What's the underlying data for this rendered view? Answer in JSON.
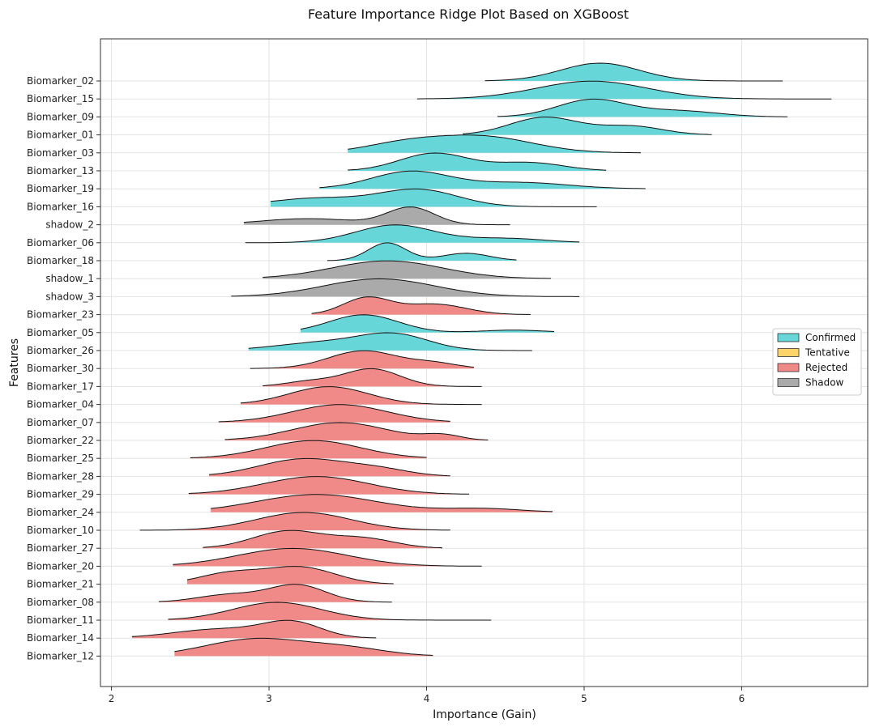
{
  "chart_data": {
    "type": "ridge",
    "title": "Feature Importance Ridge Plot Based on XGBoost",
    "xlabel": "Importance (Gain)",
    "ylabel": "Features",
    "xlim": [
      1.93,
      6.8
    ],
    "x_ticks": [
      2,
      3,
      4,
      5,
      6
    ],
    "grid": true,
    "legend_position": "right",
    "legend": [
      {
        "name": "Confirmed",
        "color": "#66d6d8"
      },
      {
        "name": "Tentative",
        "color": "#fcd46a"
      },
      {
        "name": "Rejected",
        "color": "#f08a88"
      },
      {
        "name": "Shadow",
        "color": "#aaaaaa"
      }
    ],
    "features": [
      {
        "name": "Biomarker_02",
        "status": "Confirmed",
        "min": 4.37,
        "max": 6.26,
        "peaks": [
          [
            5.1,
            0.25,
            0.68
          ]
        ]
      },
      {
        "name": "Biomarker_15",
        "status": "Confirmed",
        "min": 3.94,
        "max": 6.57,
        "peaks": [
          [
            5.05,
            0.35,
            0.72
          ]
        ]
      },
      {
        "name": "Biomarker_09",
        "status": "Confirmed",
        "min": 4.45,
        "max": 6.29,
        "peaks": [
          [
            5.05,
            0.22,
            0.72
          ],
          [
            5.6,
            0.25,
            0.25
          ]
        ]
      },
      {
        "name": "Biomarker_01",
        "status": "Confirmed",
        "min": 4.23,
        "max": 5.81,
        "peaks": [
          [
            4.75,
            0.22,
            0.72
          ],
          [
            5.3,
            0.2,
            0.35
          ]
        ]
      },
      {
        "name": "Biomarker_03",
        "status": "Confirmed",
        "min": 3.5,
        "max": 5.36,
        "peaks": [
          [
            4.35,
            0.32,
            0.68
          ],
          [
            3.85,
            0.25,
            0.35
          ]
        ]
      },
      {
        "name": "Biomarker_13",
        "status": "Confirmed",
        "min": 3.5,
        "max": 5.14,
        "peaks": [
          [
            4.05,
            0.22,
            0.65
          ],
          [
            4.65,
            0.22,
            0.3
          ]
        ]
      },
      {
        "name": "Biomarker_19",
        "status": "Confirmed",
        "min": 3.32,
        "max": 5.39,
        "peaks": [
          [
            3.9,
            0.25,
            0.7
          ],
          [
            4.6,
            0.3,
            0.25
          ]
        ]
      },
      {
        "name": "Biomarker_16",
        "status": "Confirmed",
        "min": 3.01,
        "max": 5.08,
        "peaks": [
          [
            3.95,
            0.25,
            0.6
          ],
          [
            3.3,
            0.3,
            0.3
          ]
        ]
      },
      {
        "name": "shadow_2",
        "status": "Shadow",
        "min": 2.84,
        "max": 4.53,
        "peaks": [
          [
            3.9,
            0.15,
            0.62
          ],
          [
            3.25,
            0.3,
            0.22
          ]
        ]
      },
      {
        "name": "Biomarker_06",
        "status": "Confirmed",
        "min": 2.85,
        "max": 4.97,
        "peaks": [
          [
            3.8,
            0.25,
            0.62
          ],
          [
            4.5,
            0.25,
            0.15
          ]
        ]
      },
      {
        "name": "Biomarker_18",
        "status": "Confirmed",
        "min": 3.37,
        "max": 4.57,
        "peaks": [
          [
            3.75,
            0.12,
            0.72
          ],
          [
            4.25,
            0.15,
            0.3
          ]
        ]
      },
      {
        "name": "shadow_1",
        "status": "Shadow",
        "min": 2.96,
        "max": 4.79,
        "peaks": [
          [
            3.75,
            0.35,
            0.72
          ]
        ]
      },
      {
        "name": "shadow_3",
        "status": "Shadow",
        "min": 2.76,
        "max": 4.97,
        "peaks": [
          [
            3.7,
            0.35,
            0.72
          ]
        ]
      },
      {
        "name": "Biomarker_23",
        "status": "Rejected",
        "min": 3.27,
        "max": 4.66,
        "peaks": [
          [
            3.62,
            0.15,
            0.72
          ],
          [
            4.05,
            0.2,
            0.45
          ]
        ]
      },
      {
        "name": "Biomarker_05",
        "status": "Confirmed",
        "min": 3.2,
        "max": 4.81,
        "peaks": [
          [
            3.6,
            0.22,
            0.72
          ],
          [
            4.55,
            0.2,
            0.1
          ]
        ]
      },
      {
        "name": "Biomarker_26",
        "status": "Confirmed",
        "min": 2.87,
        "max": 4.67,
        "peaks": [
          [
            3.8,
            0.22,
            0.65
          ],
          [
            3.35,
            0.3,
            0.35
          ]
        ]
      },
      {
        "name": "Biomarker_30",
        "status": "Rejected",
        "min": 2.88,
        "max": 4.3,
        "peaks": [
          [
            3.6,
            0.22,
            0.72
          ],
          [
            4.05,
            0.15,
            0.2
          ]
        ]
      },
      {
        "name": "Biomarker_17",
        "status": "Rejected",
        "min": 2.96,
        "max": 4.35,
        "peaks": [
          [
            3.65,
            0.18,
            0.72
          ],
          [
            3.25,
            0.15,
            0.2
          ]
        ]
      },
      {
        "name": "Biomarker_04",
        "status": "Rejected",
        "min": 2.82,
        "max": 4.35,
        "peaks": [
          [
            3.38,
            0.25,
            0.72
          ]
        ]
      },
      {
        "name": "Biomarker_07",
        "status": "Rejected",
        "min": 2.68,
        "max": 4.15,
        "peaks": [
          [
            3.45,
            0.3,
            0.72
          ]
        ]
      },
      {
        "name": "Biomarker_22",
        "status": "Rejected",
        "min": 2.72,
        "max": 4.39,
        "peaks": [
          [
            3.45,
            0.3,
            0.72
          ],
          [
            4.1,
            0.12,
            0.2
          ]
        ]
      },
      {
        "name": "Biomarker_25",
        "status": "Rejected",
        "min": 2.5,
        "max": 4.0,
        "peaks": [
          [
            3.28,
            0.3,
            0.72
          ]
        ]
      },
      {
        "name": "Biomarker_28",
        "status": "Rejected",
        "min": 2.62,
        "max": 4.15,
        "peaks": [
          [
            3.22,
            0.28,
            0.72
          ],
          [
            3.7,
            0.2,
            0.25
          ]
        ]
      },
      {
        "name": "Biomarker_29",
        "status": "Rejected",
        "min": 2.49,
        "max": 4.27,
        "peaks": [
          [
            3.3,
            0.33,
            0.72
          ]
        ]
      },
      {
        "name": "Biomarker_24",
        "status": "Rejected",
        "min": 2.63,
        "max": 4.8,
        "peaks": [
          [
            3.3,
            0.38,
            0.72
          ],
          [
            4.35,
            0.25,
            0.15
          ]
        ]
      },
      {
        "name": "Biomarker_10",
        "status": "Rejected",
        "min": 2.18,
        "max": 4.15,
        "peaks": [
          [
            3.22,
            0.3,
            0.72
          ]
        ]
      },
      {
        "name": "Biomarker_27",
        "status": "Rejected",
        "min": 2.58,
        "max": 4.1,
        "peaks": [
          [
            3.12,
            0.22,
            0.72
          ],
          [
            3.6,
            0.2,
            0.4
          ]
        ]
      },
      {
        "name": "Biomarker_20",
        "status": "Rejected",
        "min": 2.39,
        "max": 4.35,
        "peaks": [
          [
            3.15,
            0.35,
            0.72
          ]
        ]
      },
      {
        "name": "Biomarker_21",
        "status": "Rejected",
        "min": 2.48,
        "max": 3.79,
        "peaks": [
          [
            3.2,
            0.22,
            0.7
          ],
          [
            2.75,
            0.2,
            0.45
          ]
        ]
      },
      {
        "name": "Biomarker_08",
        "status": "Rejected",
        "min": 2.3,
        "max": 3.78,
        "peaks": [
          [
            3.18,
            0.18,
            0.68
          ],
          [
            2.75,
            0.2,
            0.3
          ]
        ]
      },
      {
        "name": "Biomarker_11",
        "status": "Rejected",
        "min": 2.36,
        "max": 4.41,
        "peaks": [
          [
            3.05,
            0.28,
            0.72
          ]
        ]
      },
      {
        "name": "Biomarker_14",
        "status": "Rejected",
        "min": 2.13,
        "max": 3.68,
        "peaks": [
          [
            3.15,
            0.18,
            0.72
          ],
          [
            2.7,
            0.3,
            0.45
          ]
        ]
      },
      {
        "name": "Biomarker_12",
        "status": "Rejected",
        "min": 2.4,
        "max": 4.04,
        "peaks": [
          [
            2.92,
            0.32,
            0.72
          ],
          [
            3.5,
            0.25,
            0.3
          ]
        ]
      }
    ]
  }
}
